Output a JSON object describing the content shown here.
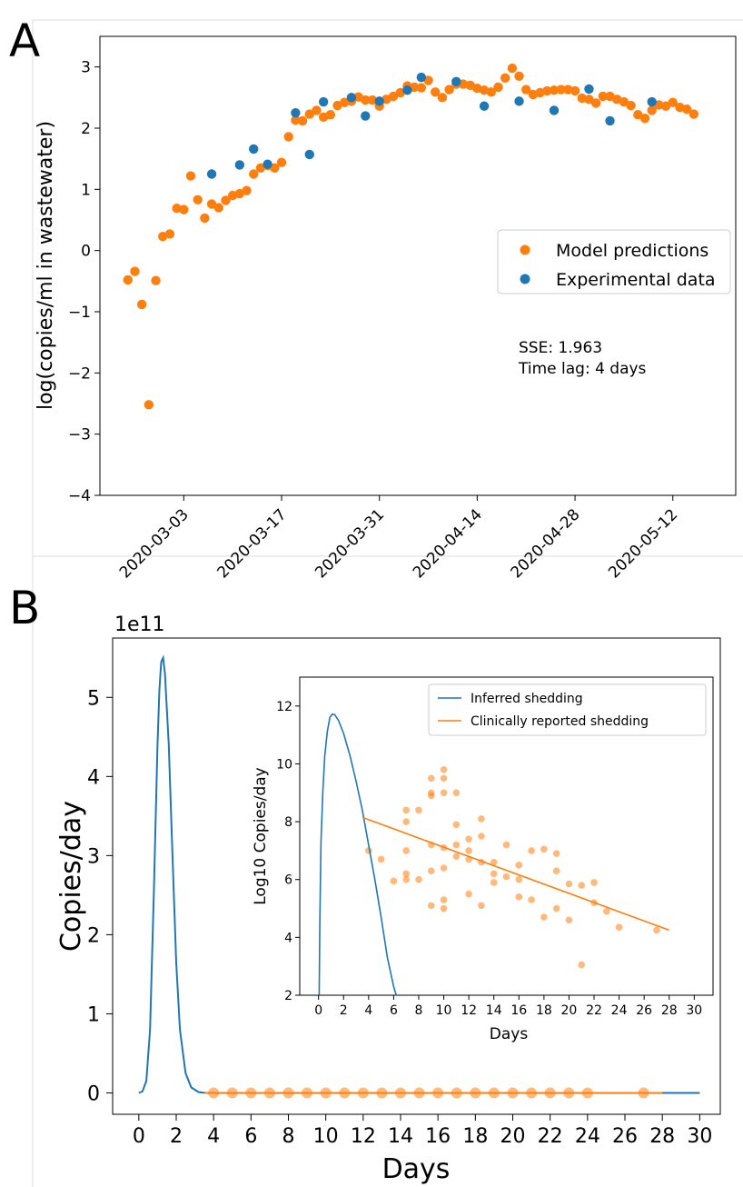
{
  "panel_a": {
    "label": "A",
    "sse_text": "SSE: 1.963",
    "lag_text": "Time lag: 4 days",
    "legend": [
      "Model predictions",
      "Experimental data"
    ]
  },
  "panel_b": {
    "label": "B",
    "sci_offset": "1e11"
  },
  "colors": {
    "orange": "#ff7f0e",
    "blue": "#1f77b4"
  },
  "chart_data": [
    {
      "id": "panel-a",
      "type": "scatter",
      "title": "",
      "xlabel": "",
      "ylabel": "log(copies/ml in wastewater)",
      "x_axis": "date",
      "xlim": [
        "2020-02-20",
        "2020-05-21"
      ],
      "ylim": [
        -4,
        3.5
      ],
      "x_ticks": [
        "2020-03-03",
        "2020-03-17",
        "2020-03-31",
        "2020-04-14",
        "2020-04-28",
        "2020-05-12"
      ],
      "y_ticks": [
        -4,
        -3,
        -2,
        -1,
        0,
        1,
        2,
        3
      ],
      "grid": false,
      "legend_position": "right",
      "series": [
        {
          "name": "Model predictions",
          "color": "#ff7f0e",
          "points": [
            [
              "2020-02-24",
              -0.48
            ],
            [
              "2020-02-25",
              -0.34
            ],
            [
              "2020-02-26",
              -0.88
            ],
            [
              "2020-02-27",
              -2.52
            ],
            [
              "2020-02-28",
              -0.49
            ],
            [
              "2020-02-29",
              0.23
            ],
            [
              "2020-03-01",
              0.27
            ],
            [
              "2020-03-02",
              0.69
            ],
            [
              "2020-03-03",
              0.67
            ],
            [
              "2020-03-04",
              1.22
            ],
            [
              "2020-03-05",
              0.83
            ],
            [
              "2020-03-06",
              0.53
            ],
            [
              "2020-03-07",
              0.76
            ],
            [
              "2020-03-08",
              0.7
            ],
            [
              "2020-03-09",
              0.82
            ],
            [
              "2020-03-10",
              0.9
            ],
            [
              "2020-03-11",
              0.93
            ],
            [
              "2020-03-12",
              0.98
            ],
            [
              "2020-03-13",
              1.25
            ],
            [
              "2020-03-14",
              1.35
            ],
            [
              "2020-03-15",
              1.39
            ],
            [
              "2020-03-16",
              1.35
            ],
            [
              "2020-03-17",
              1.44
            ],
            [
              "2020-03-18",
              1.86
            ],
            [
              "2020-03-19",
              2.13
            ],
            [
              "2020-03-20",
              2.12
            ],
            [
              "2020-03-21",
              2.23
            ],
            [
              "2020-03-22",
              2.29
            ],
            [
              "2020-03-23",
              2.18
            ],
            [
              "2020-03-24",
              2.22
            ],
            [
              "2020-03-25",
              2.37
            ],
            [
              "2020-03-26",
              2.42
            ],
            [
              "2020-03-27",
              2.44
            ],
            [
              "2020-03-28",
              2.51
            ],
            [
              "2020-03-29",
              2.46
            ],
            [
              "2020-03-30",
              2.46
            ],
            [
              "2020-03-31",
              2.36
            ],
            [
              "2020-04-01",
              2.47
            ],
            [
              "2020-04-02",
              2.52
            ],
            [
              "2020-04-03",
              2.58
            ],
            [
              "2020-04-04",
              2.69
            ],
            [
              "2020-04-05",
              2.67
            ],
            [
              "2020-04-06",
              2.66
            ],
            [
              "2020-04-07",
              2.78
            ],
            [
              "2020-04-08",
              2.59
            ],
            [
              "2020-04-09",
              2.5
            ],
            [
              "2020-04-10",
              2.63
            ],
            [
              "2020-04-11",
              2.72
            ],
            [
              "2020-04-12",
              2.72
            ],
            [
              "2020-04-13",
              2.7
            ],
            [
              "2020-04-14",
              2.65
            ],
            [
              "2020-04-15",
              2.62
            ],
            [
              "2020-04-16",
              2.59
            ],
            [
              "2020-04-17",
              2.67
            ],
            [
              "2020-04-18",
              2.82
            ],
            [
              "2020-04-19",
              2.98
            ],
            [
              "2020-04-20",
              2.85
            ],
            [
              "2020-04-21",
              2.63
            ],
            [
              "2020-04-22",
              2.55
            ],
            [
              "2020-04-23",
              2.58
            ],
            [
              "2020-04-24",
              2.61
            ],
            [
              "2020-04-25",
              2.62
            ],
            [
              "2020-04-26",
              2.63
            ],
            [
              "2020-04-27",
              2.63
            ],
            [
              "2020-04-28",
              2.61
            ],
            [
              "2020-04-29",
              2.49
            ],
            [
              "2020-04-30",
              2.47
            ],
            [
              "2020-05-01",
              2.41
            ],
            [
              "2020-05-02",
              2.52
            ],
            [
              "2020-05-03",
              2.52
            ],
            [
              "2020-05-04",
              2.47
            ],
            [
              "2020-05-05",
              2.43
            ],
            [
              "2020-05-06",
              2.37
            ],
            [
              "2020-05-07",
              2.22
            ],
            [
              "2020-05-08",
              2.16
            ],
            [
              "2020-05-09",
              2.29
            ],
            [
              "2020-05-10",
              2.38
            ],
            [
              "2020-05-11",
              2.36
            ],
            [
              "2020-05-12",
              2.42
            ],
            [
              "2020-05-13",
              2.34
            ],
            [
              "2020-05-14",
              2.31
            ],
            [
              "2020-05-15",
              2.23
            ]
          ]
        },
        {
          "name": "Experimental data",
          "color": "#1f77b4",
          "points": [
            [
              "2020-03-07",
              1.25
            ],
            [
              "2020-03-11",
              1.4
            ],
            [
              "2020-03-13",
              1.66
            ],
            [
              "2020-03-15",
              1.41
            ],
            [
              "2020-03-19",
              2.25
            ],
            [
              "2020-03-21",
              1.57
            ],
            [
              "2020-03-23",
              2.43
            ],
            [
              "2020-03-27",
              2.5
            ],
            [
              "2020-03-29",
              2.2
            ],
            [
              "2020-03-31",
              2.44
            ],
            [
              "2020-04-04",
              2.62
            ],
            [
              "2020-04-06",
              2.83
            ],
            [
              "2020-04-11",
              2.76
            ],
            [
              "2020-04-15",
              2.36
            ],
            [
              "2020-04-20",
              2.44
            ],
            [
              "2020-04-25",
              2.29
            ],
            [
              "2020-04-30",
              2.64
            ],
            [
              "2020-05-03",
              2.12
            ],
            [
              "2020-05-09",
              2.43
            ]
          ]
        }
      ]
    },
    {
      "id": "panel-b-main",
      "type": "line",
      "title": "",
      "xlabel": "Days",
      "ylabel": "Copies/day",
      "y_multiplier": "1e11",
      "xlim": [
        -1.4,
        31.1
      ],
      "ylim": [
        -0.27,
        5.75
      ],
      "x_ticks": [
        0,
        2,
        4,
        6,
        8,
        10,
        12,
        14,
        16,
        18,
        20,
        22,
        24,
        26,
        28,
        30
      ],
      "y_ticks": [
        0,
        1,
        2,
        3,
        4,
        5
      ],
      "grid": false,
      "series": [
        {
          "name": "",
          "kind": "line",
          "color": "#1f77b4",
          "x": [
            0.0,
            0.2,
            0.4,
            0.6,
            0.8,
            1.0,
            1.1,
            1.2,
            1.3,
            1.4,
            1.6,
            1.8,
            2.0,
            2.2,
            2.5,
            2.8,
            3.2,
            3.6,
            4.0,
            30.0
          ],
          "y": [
            0.0,
            0.02,
            0.15,
            0.8,
            2.5,
            4.4,
            5.1,
            5.45,
            5.5,
            5.3,
            4.4,
            3.0,
            1.65,
            0.8,
            0.25,
            0.07,
            0.01,
            0.0,
            0.0,
            0.0
          ]
        },
        {
          "name": "",
          "kind": "line",
          "color": "#ff7f0e",
          "x": [
            3.5,
            28.0
          ],
          "y": [
            0.0,
            0.0
          ]
        },
        {
          "name": "",
          "kind": "scatter",
          "color": "#ff7f0e",
          "x": [
            4,
            5,
            6,
            7,
            8,
            9,
            10,
            11,
            12,
            13,
            14,
            15,
            16,
            17,
            18,
            19,
            20,
            21,
            22,
            23,
            24,
            27
          ],
          "y": [
            0,
            0,
            0,
            0,
            0,
            0,
            0,
            0,
            0,
            0,
            0,
            0,
            0,
            0,
            0,
            0,
            0,
            0,
            0,
            0,
            0,
            0
          ]
        }
      ]
    },
    {
      "id": "panel-b-inset",
      "type": "scatter",
      "title": "",
      "xlabel": "Days",
      "ylabel": "Log10 Copies/day",
      "xlim": [
        -1.5,
        31.5
      ],
      "ylim": [
        2,
        13
      ],
      "x_ticks": [
        0,
        2,
        4,
        6,
        8,
        10,
        12,
        14,
        16,
        18,
        20,
        22,
        24,
        26,
        28,
        30
      ],
      "y_ticks": [
        2,
        4,
        6,
        8,
        10,
        12
      ],
      "grid": false,
      "legend_position": "top-right",
      "series": [
        {
          "name": "Inferred shedding",
          "kind": "line",
          "color": "#1f77b4",
          "x": [
            0.05,
            0.1,
            0.2,
            0.35,
            0.5,
            0.7,
            0.9,
            1.1,
            1.3,
            1.6,
            2.0,
            2.5,
            3.0,
            3.5,
            4.0,
            4.5,
            5.0,
            5.5,
            6.0,
            6.2
          ],
          "y": [
            2.0,
            4.5,
            7.3,
            9.1,
            10.3,
            11.1,
            11.6,
            11.72,
            11.7,
            11.5,
            11.05,
            10.3,
            9.4,
            8.4,
            7.2,
            6.0,
            4.7,
            3.3,
            2.3,
            2.0
          ]
        },
        {
          "name": "Clinically reported shedding",
          "kind": "line",
          "color": "#ff7f0e",
          "x": [
            3.5,
            28.0
          ],
          "y": [
            8.15,
            4.25
          ]
        },
        {
          "name": "",
          "kind": "scatter",
          "color": "#ff7f0e",
          "x": [
            4,
            5,
            6,
            7,
            7,
            7,
            7,
            7,
            8,
            8,
            9,
            9,
            9,
            9,
            9,
            9,
            10,
            10,
            10,
            10,
            10,
            10,
            10,
            11,
            11,
            11,
            11,
            12,
            12,
            12,
            12,
            13,
            13,
            13,
            13,
            14,
            14,
            14,
            15,
            15,
            16,
            16,
            16,
            17,
            17,
            18,
            18,
            19,
            19,
            19,
            20,
            20,
            21,
            21,
            22,
            22,
            23,
            24,
            27
          ],
          "y": [
            7.0,
            6.7,
            5.95,
            8.4,
            8.0,
            7.0,
            6.2,
            6.0,
            8.4,
            6.0,
            9.5,
            9.0,
            8.9,
            7.2,
            6.3,
            5.1,
            9.8,
            9.5,
            9.0,
            7.1,
            6.4,
            5.3,
            5.0,
            9.0,
            7.9,
            7.2,
            6.8,
            7.4,
            7.0,
            6.7,
            5.5,
            8.1,
            7.5,
            6.6,
            5.1,
            6.6,
            6.2,
            5.9,
            7.2,
            6.1,
            6.5,
            6.0,
            5.4,
            7.0,
            5.3,
            7.05,
            4.7,
            6.9,
            6.3,
            5.0,
            5.85,
            4.6,
            5.8,
            3.05,
            5.9,
            5.2,
            4.9,
            4.35,
            4.25
          ]
        }
      ]
    }
  ]
}
